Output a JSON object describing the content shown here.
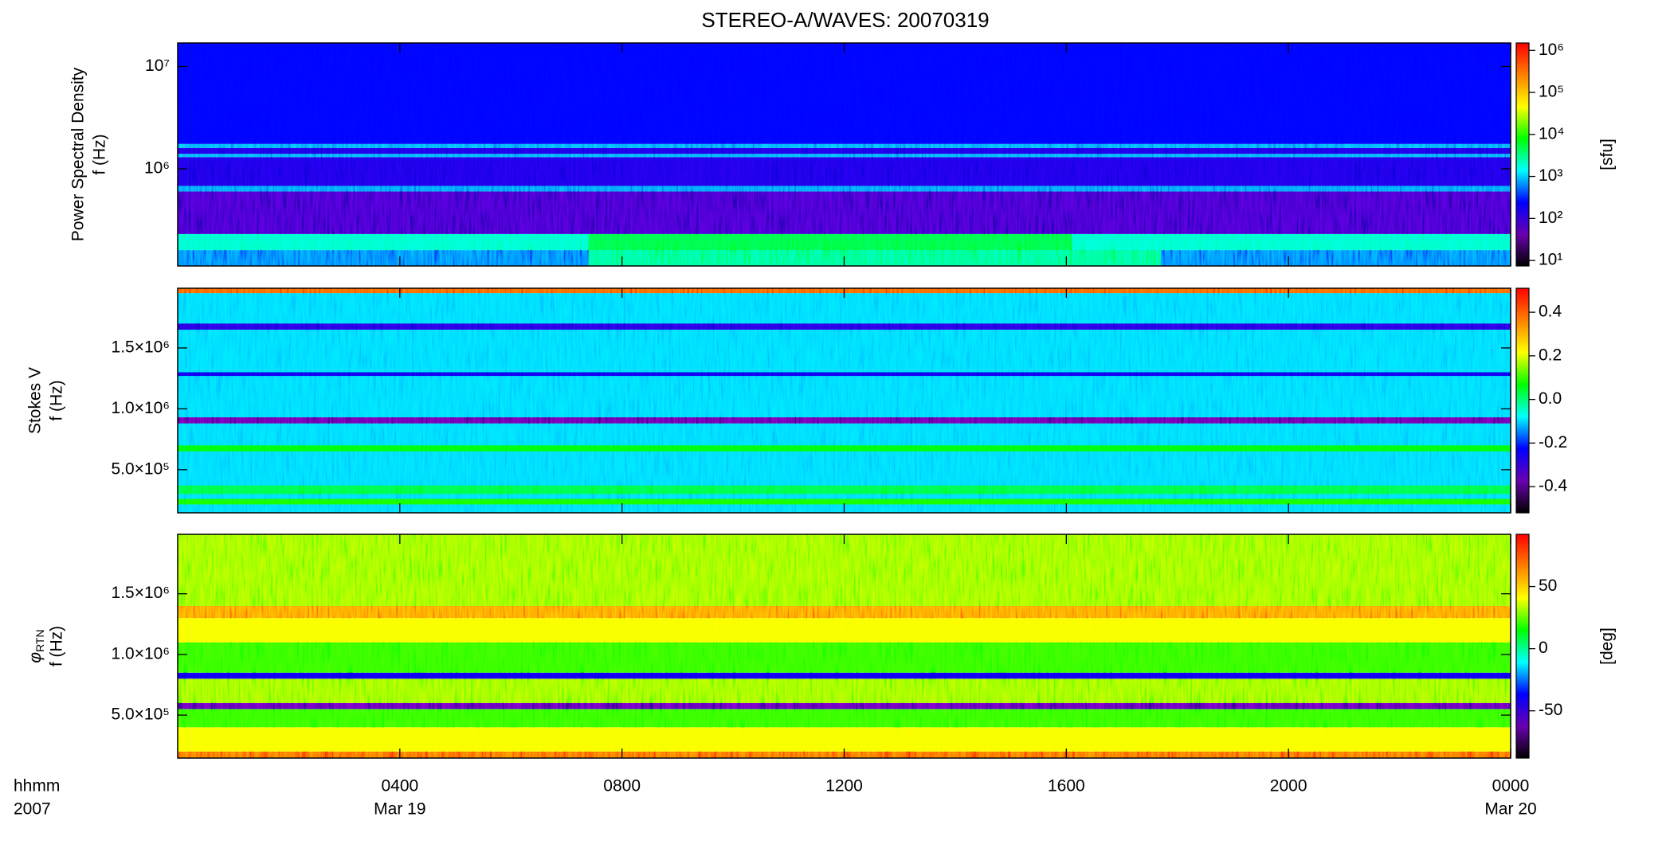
{
  "chart_data": [
    {
      "type": "heatmap",
      "title": "STEREO-A/WAVES: 20070319",
      "colormap": [
        "#000000",
        "#6a00b0",
        "#0000ff",
        "#00ffff",
        "#00ff00",
        "#ffff00",
        "#ff8000",
        "#ff0000"
      ],
      "ylabel": [
        "Power Spectral Density",
        "f (Hz)"
      ],
      "ylog": true,
      "ylim": [
        112000,
        17000000
      ],
      "yticks": [
        {
          "value": 1000000,
          "label": "10⁶"
        },
        {
          "value": 10000000,
          "label": "10⁷"
        }
      ],
      "xlim": [
        0,
        24
      ],
      "xticks": [
        {
          "value": 4,
          "label": "0400"
        },
        {
          "value": 8,
          "label": "0800"
        },
        {
          "value": 12,
          "label": "1200"
        },
        {
          "value": 16,
          "label": "1600"
        },
        {
          "value": 20,
          "label": "2000"
        },
        {
          "value": 24,
          "label": "0000"
        }
      ],
      "colorbar": {
        "log": true,
        "lim": [
          7.4,
          1500000
        ],
        "label": "[sfu]",
        "ticks": [
          {
            "value": 10,
            "label": "10¹"
          },
          {
            "value": 100,
            "label": "10²"
          },
          {
            "value": 1000,
            "label": "10³"
          },
          {
            "value": 10000,
            "label": "10⁴"
          },
          {
            "value": 100000,
            "label": "10⁵"
          },
          {
            "value": 1000000,
            "label": "10⁶"
          }
        ]
      },
      "bands": [
        {
          "x": [
            0,
            24
          ],
          "y": [
            112000,
            160000
          ],
          "value": 600
        },
        {
          "x": [
            7.4,
            17.7
          ],
          "y": [
            112000,
            160000
          ],
          "value": 3000
        },
        {
          "x": [
            0,
            24
          ],
          "y": [
            160000,
            230000
          ],
          "value": 2000
        },
        {
          "x": [
            7.4,
            16.1
          ],
          "y": [
            160000,
            230000
          ],
          "value": 5000
        },
        {
          "x": [
            0,
            24
          ],
          "y": [
            230000,
            600000
          ],
          "value": 80
        },
        {
          "x": [
            0,
            24
          ],
          "y": [
            600000,
            680000
          ],
          "value": 700
        },
        {
          "x": [
            0,
            24
          ],
          "y": [
            680000,
            1300000
          ],
          "value": 150
        },
        {
          "x": [
            0,
            24
          ],
          "y": [
            1300000,
            1400000
          ],
          "value": 800
        },
        {
          "x": [
            0,
            24
          ],
          "y": [
            1400000,
            1600000
          ],
          "value": 150
        },
        {
          "x": [
            0,
            24
          ],
          "y": [
            1600000,
            1750000
          ],
          "value": 800
        },
        {
          "x": [
            0,
            24
          ],
          "y": [
            1750000,
            17000000
          ],
          "value": 250
        }
      ]
    },
    {
      "type": "heatmap",
      "ylabel": [
        "Stokes V",
        "f (Hz)"
      ],
      "ylog": false,
      "ylim": [
        146000,
        1990000
      ],
      "yticks": [
        {
          "value": 500000,
          "label": "5.0×10⁵"
        },
        {
          "value": 1000000,
          "label": "1.0×10⁶"
        },
        {
          "value": 1500000,
          "label": "1.5×10⁶"
        }
      ],
      "xlim": [
        0,
        24
      ],
      "xticks": [
        4,
        8,
        12,
        16,
        20,
        24
      ],
      "colorbar": {
        "log": false,
        "lim": [
          -0.52,
          0.51
        ],
        "ticks": [
          -0.4,
          -0.2,
          {
            "value": 0,
            "label": "0.0"
          },
          0.2,
          0.4
        ]
      },
      "bands": [
        {
          "x": [
            0,
            24
          ],
          "y": [
            146000,
            1990000
          ],
          "value": -0.1
        },
        {
          "x": [
            0,
            24
          ],
          "y": [
            215000,
            260000
          ],
          "value": 0.08
        },
        {
          "x": [
            0,
            24
          ],
          "y": [
            300000,
            370000
          ],
          "value": 0.03
        },
        {
          "x": [
            0,
            24
          ],
          "y": [
            650000,
            700000
          ],
          "value": 0.06
        },
        {
          "x": [
            0,
            24
          ],
          "y": [
            880000,
            930000
          ],
          "value": -0.38
        },
        {
          "x": [
            0,
            24
          ],
          "y": [
            1270000,
            1300000
          ],
          "value": -0.25
        },
        {
          "x": [
            0,
            24
          ],
          "y": [
            1650000,
            1700000
          ],
          "value": -0.28
        },
        {
          "x": [
            0,
            24
          ],
          "y": [
            1950000,
            1990000
          ],
          "value": 0.4
        }
      ]
    },
    {
      "type": "heatmap",
      "ylabel": [
        {
          "symbol": "φ",
          "subscript": "RTN"
        },
        "f (Hz)"
      ],
      "ylog": false,
      "ylim": [
        146000,
        1990000
      ],
      "yticks": [
        {
          "value": 500000,
          "label": "5.0×10⁵"
        },
        {
          "value": 1000000,
          "label": "1.0×10⁶"
        },
        {
          "value": 1500000,
          "label": "1.5×10⁶"
        }
      ],
      "xlim": [
        0,
        24
      ],
      "xticks": [
        {
          "value": 4,
          "label": "0400"
        },
        {
          "value": 8,
          "label": "0800"
        },
        {
          "value": 12,
          "label": "1200"
        },
        {
          "value": 16,
          "label": "1600"
        },
        {
          "value": 20,
          "label": "2000"
        },
        {
          "value": 24,
          "label": "0000"
        }
      ],
      "date_labels": [
        {
          "value": 4,
          "label": "Mar 19"
        },
        {
          "value": 24,
          "label": "Mar 20"
        }
      ],
      "xlabel": [
        "hhmm",
        "2007"
      ],
      "colorbar": {
        "log": false,
        "lim": [
          -88,
          92
        ],
        "label": "[deg]",
        "ticks": [
          -50,
          0,
          50
        ]
      },
      "bands": [
        {
          "x": [
            0,
            24
          ],
          "y": [
            146000,
            200000
          ],
          "value": 70
        },
        {
          "x": [
            0,
            24
          ],
          "y": [
            200000,
            400000
          ],
          "value": 40
        },
        {
          "x": [
            0,
            24
          ],
          "y": [
            400000,
            550000
          ],
          "value": 20
        },
        {
          "x": [
            0,
            24
          ],
          "y": [
            550000,
            600000
          ],
          "value": -60
        },
        {
          "x": [
            0,
            24
          ],
          "y": [
            600000,
            800000
          ],
          "value": 30
        },
        {
          "x": [
            0,
            24
          ],
          "y": [
            800000,
            850000
          ],
          "value": -40
        },
        {
          "x": [
            0,
            24
          ],
          "y": [
            850000,
            1100000
          ],
          "value": 20
        },
        {
          "x": [
            0,
            24
          ],
          "y": [
            1100000,
            1300000
          ],
          "value": 40
        },
        {
          "x": [
            0,
            24
          ],
          "y": [
            1300000,
            1400000
          ],
          "value": 60
        },
        {
          "x": [
            0,
            24
          ],
          "y": [
            1400000,
            1990000
          ],
          "value": 30
        }
      ]
    }
  ]
}
